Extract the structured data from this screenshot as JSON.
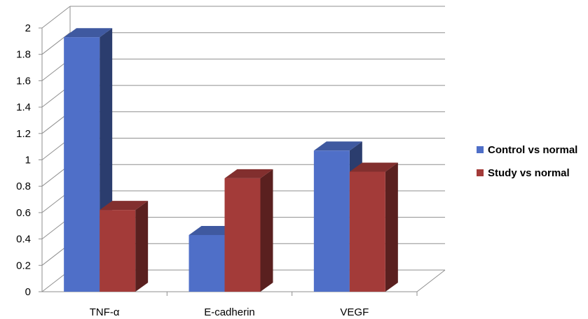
{
  "chart_data": {
    "type": "bar",
    "categories": [
      "TNF-α",
      "E-cadherin",
      "VEGF"
    ],
    "series": [
      {
        "name": "Control vs normal",
        "values": [
          1.93,
          0.43,
          1.07
        ],
        "color": "#4F6FC8"
      },
      {
        "name": "Study vs normal",
        "values": [
          0.62,
          0.86,
          0.91
        ],
        "color": "#A33B39"
      }
    ],
    "ylim": [
      0,
      2
    ],
    "yticks": [
      "0",
      "0.2",
      "0.4",
      "0.6",
      "0.8",
      "1",
      "1.2",
      "1.4",
      "1.6",
      "1.8",
      "2"
    ],
    "grid": true,
    "style": "3d",
    "legend_position": "right"
  }
}
